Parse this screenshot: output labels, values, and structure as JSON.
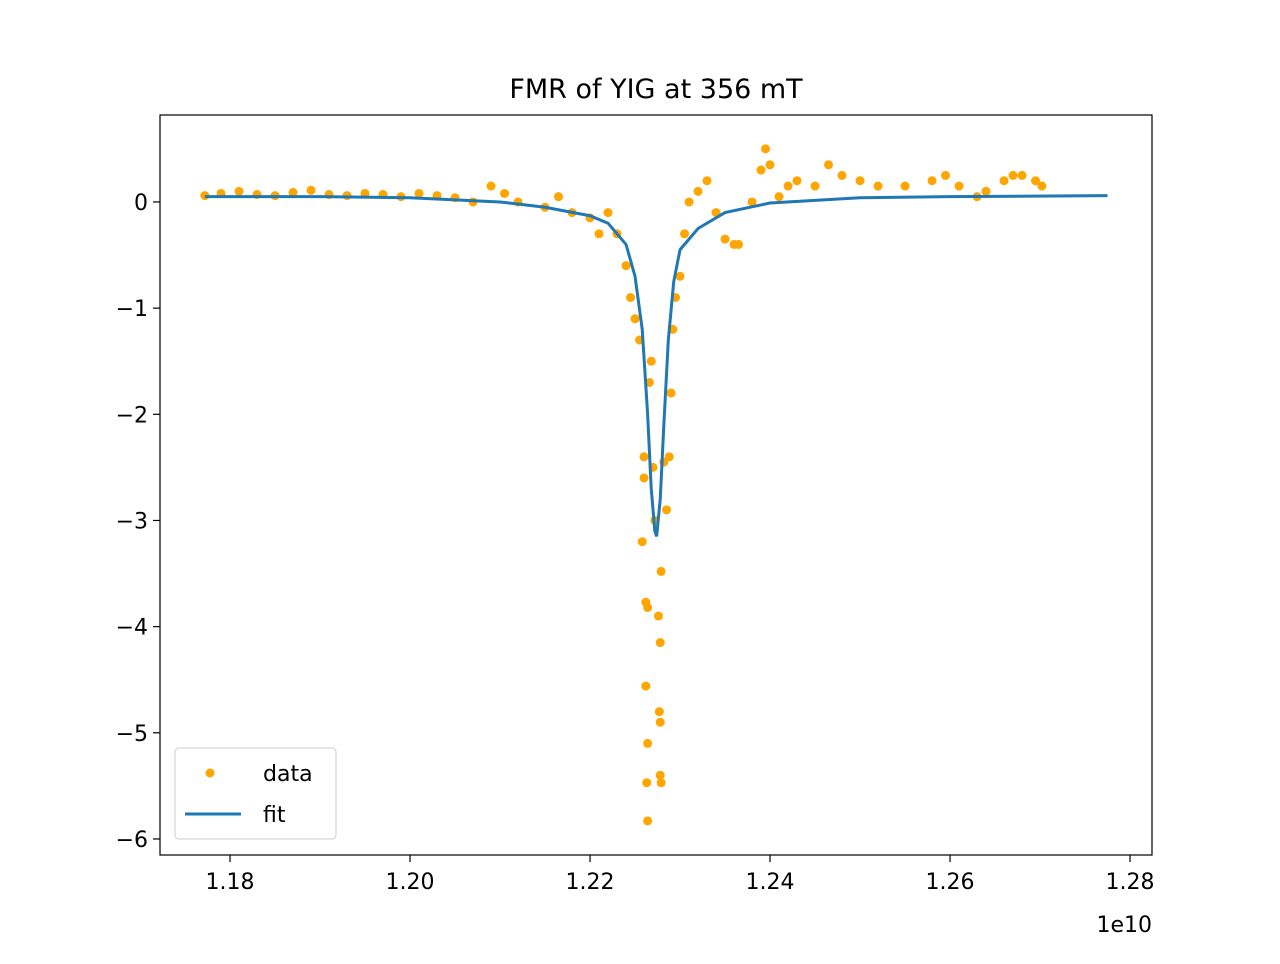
{
  "chart_data": {
    "type": "scatter",
    "title": "FMR of YIG at 356 mT",
    "x_offset_label": "1e10",
    "xlim": [
      1.17222,
      1.28244
    ],
    "ylim": [
      -6.151,
      0.819
    ],
    "xticks": [
      1.18,
      {
        "value": 1.2,
        "label": "1.20"
      },
      1.22,
      1.24,
      1.26,
      {
        "value": 1.28,
        "label": "1.28"
      }
    ],
    "yticks": [
      {
        "value": -6,
        "label": "−6"
      },
      {
        "value": -5,
        "label": "−5"
      },
      {
        "value": -4,
        "label": "−4"
      },
      {
        "value": -3,
        "label": "−3"
      },
      {
        "value": -2,
        "label": "−2"
      },
      {
        "value": -1,
        "label": "−1"
      },
      0
    ],
    "legend": "lower left",
    "series": [
      {
        "name": "data",
        "style": "points",
        "color": "orange",
        "x": [
          1.1772,
          1.179,
          1.181,
          1.183,
          1.185,
          1.187,
          1.189,
          1.191,
          1.193,
          1.195,
          1.197,
          1.199,
          1.201,
          1.203,
          1.205,
          1.207,
          1.209,
          1.2105,
          1.212,
          1.215,
          1.2165,
          1.218,
          1.22,
          1.221,
          1.222,
          1.223,
          1.224,
          1.2245,
          1.225,
          1.2255,
          1.2258,
          1.2262,
          1.2264,
          1.2262,
          1.2264,
          1.2263,
          1.2264,
          1.226,
          1.226,
          1.2266,
          1.2268,
          1.227,
          1.2272,
          1.2276,
          1.2278,
          1.2277,
          1.2278,
          1.2278,
          1.2279,
          1.2279,
          1.2282,
          1.2285,
          1.2288,
          1.229,
          1.2292,
          1.2295,
          1.23,
          1.2305,
          1.231,
          1.232,
          1.233,
          1.234,
          1.235,
          1.236,
          1.2365,
          1.238,
          1.239,
          1.2395,
          1.24,
          1.241,
          1.242,
          1.243,
          1.245,
          1.2465,
          1.248,
          1.25,
          1.252,
          1.255,
          1.258,
          1.2595,
          1.261,
          1.263,
          1.264,
          1.266,
          1.267,
          1.268,
          1.2695,
          1.2702
        ],
        "values": [
          0.06,
          0.08,
          0.1,
          0.07,
          0.06,
          0.09,
          0.11,
          0.07,
          0.06,
          0.08,
          0.07,
          0.05,
          0.08,
          0.06,
          0.04,
          0.0,
          0.15,
          0.08,
          0.0,
          -0.05,
          0.05,
          -0.1,
          -0.15,
          -0.3,
          -0.1,
          -0.3,
          -0.6,
          -0.9,
          -1.1,
          -1.3,
          -3.2,
          -3.77,
          -3.82,
          -4.56,
          -5.1,
          -5.47,
          -5.83,
          -2.4,
          -2.6,
          -1.7,
          -1.5,
          -2.5,
          -3.0,
          -3.9,
          -4.15,
          -4.8,
          -4.9,
          -5.4,
          -5.47,
          -3.48,
          -2.45,
          -2.9,
          -2.4,
          -1.8,
          -1.2,
          -0.9,
          -0.7,
          -0.3,
          0.0,
          0.1,
          0.2,
          -0.1,
          -0.35,
          -0.4,
          -0.4,
          0.0,
          0.3,
          0.5,
          0.35,
          0.05,
          0.15,
          0.2,
          0.15,
          0.35,
          0.25,
          0.2,
          0.15,
          0.15,
          0.2,
          0.25,
          0.15,
          0.05,
          0.1,
          0.2,
          0.25,
          0.25,
          0.2,
          0.15
        ]
      },
      {
        "name": "fit",
        "style": "line",
        "color": "#1f77b4",
        "x": [
          1.1772,
          1.19,
          1.2,
          1.21,
          1.215,
          1.22,
          1.222,
          1.224,
          1.225,
          1.2258,
          1.2264,
          1.2268,
          1.2272,
          1.2274,
          1.2278,
          1.2282,
          1.2287,
          1.2293,
          1.23,
          1.232,
          1.235,
          1.24,
          1.25,
          1.26,
          1.2775
        ],
        "values": [
          0.05,
          0.05,
          0.04,
          0.0,
          -0.05,
          -0.13,
          -0.2,
          -0.4,
          -0.7,
          -1.2,
          -2.0,
          -2.7,
          -3.1,
          -3.15,
          -2.8,
          -2.1,
          -1.3,
          -0.75,
          -0.45,
          -0.25,
          -0.1,
          -0.01,
          0.04,
          0.05,
          0.06
        ]
      }
    ]
  }
}
